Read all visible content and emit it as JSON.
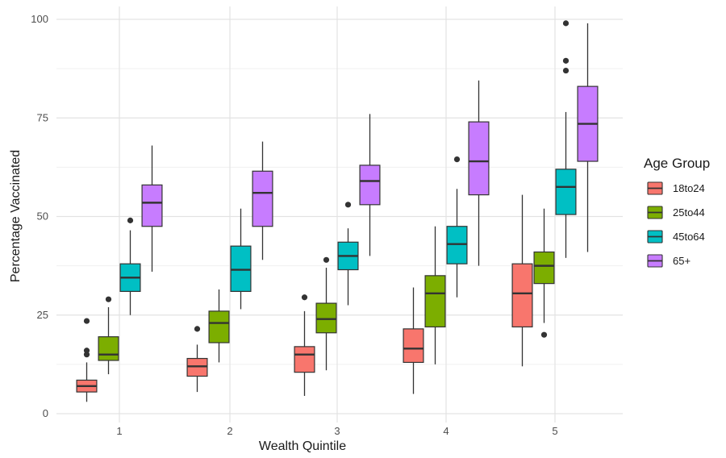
{
  "chart_data": {
    "type": "boxplot",
    "title": "",
    "xlabel": "Wealth Quintile",
    "ylabel": "Percentage Vaccinated",
    "categories": [
      "1",
      "2",
      "3",
      "4",
      "5"
    ],
    "ylim": [
      0,
      100
    ],
    "yticks": [
      0,
      25,
      50,
      75,
      100
    ],
    "grid": true,
    "legend": {
      "title": "Age Group",
      "position": "right"
    },
    "series": [
      {
        "name": "18to24",
        "color": "#F8766D",
        "boxes": [
          {
            "min": 3,
            "q1": 5.5,
            "median": 7,
            "q3": 8.5,
            "max": 13,
            "outliers": [
              15,
              16,
              23.5
            ]
          },
          {
            "min": 5.5,
            "q1": 9.5,
            "median": 12,
            "q3": 14,
            "max": 17.5,
            "outliers": [
              21.5
            ]
          },
          {
            "min": 4.5,
            "q1": 10.5,
            "median": 15,
            "q3": 17,
            "max": 26,
            "outliers": [
              29.5
            ]
          },
          {
            "min": 5,
            "q1": 13,
            "median": 16.5,
            "q3": 21.5,
            "max": 32,
            "outliers": []
          },
          {
            "min": 12,
            "q1": 22,
            "median": 30.5,
            "q3": 38,
            "max": 55.5,
            "outliers": []
          }
        ]
      },
      {
        "name": "25to44",
        "color": "#7CAE00",
        "boxes": [
          {
            "min": 10,
            "q1": 13.5,
            "median": 15,
            "q3": 19.5,
            "max": 27,
            "outliers": [
              29
            ]
          },
          {
            "min": 13,
            "q1": 18,
            "median": 23,
            "q3": 26,
            "max": 31.5,
            "outliers": []
          },
          {
            "min": 11,
            "q1": 20.5,
            "median": 24,
            "q3": 28,
            "max": 37,
            "outliers": [
              39
            ]
          },
          {
            "min": 12.5,
            "q1": 22,
            "median": 30.5,
            "q3": 35,
            "max": 47.5,
            "outliers": []
          },
          {
            "min": 23,
            "q1": 33,
            "median": 37.5,
            "q3": 41,
            "max": 52,
            "outliers": [
              20
            ]
          }
        ]
      },
      {
        "name": "45to64",
        "color": "#00BFC4",
        "boxes": [
          {
            "min": 25,
            "q1": 31,
            "median": 34.5,
            "q3": 38,
            "max": 46.5,
            "outliers": [
              49
            ]
          },
          {
            "min": 26.5,
            "q1": 31,
            "median": 36.5,
            "q3": 42.5,
            "max": 52,
            "outliers": []
          },
          {
            "min": 27.5,
            "q1": 36.5,
            "median": 40,
            "q3": 43.5,
            "max": 47,
            "outliers": [
              53
            ]
          },
          {
            "min": 29.5,
            "q1": 38,
            "median": 43,
            "q3": 47.5,
            "max": 57,
            "outliers": [
              64.5
            ]
          },
          {
            "min": 39.5,
            "q1": 50.5,
            "median": 57.5,
            "q3": 62,
            "max": 76.5,
            "outliers": []
          }
        ]
      },
      {
        "name": "65+",
        "color": "#C77CFF",
        "boxes": [
          {
            "min": 36,
            "q1": 47.5,
            "median": 53.5,
            "q3": 58,
            "max": 68,
            "outliers": []
          },
          {
            "min": 39,
            "q1": 47.5,
            "median": 56,
            "q3": 61.5,
            "max": 69,
            "outliers": []
          },
          {
            "min": 40,
            "q1": 53,
            "median": 59,
            "q3": 63,
            "max": 76,
            "outliers": []
          },
          {
            "min": 37.5,
            "q1": 55.5,
            "median": 64,
            "q3": 74,
            "max": 84.5,
            "outliers": []
          },
          {
            "min": 41,
            "q1": 64,
            "median": 73.5,
            "q3": 83,
            "max": 99,
            "outliers": []
          }
        ]
      }
    ],
    "extra_outliers_series4_q5": [
      87,
      89.5,
      99
    ]
  }
}
